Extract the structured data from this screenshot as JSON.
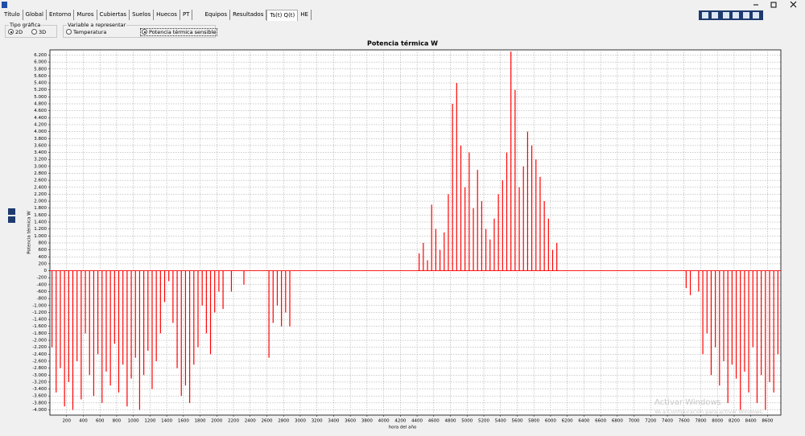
{
  "tabs": [
    "Título",
    "Global",
    "Entorno",
    "Muros",
    "Cubiertas",
    "Suelos",
    "Huecos",
    "PT",
    "Equipos",
    "Resultados",
    "Ts(t) Q(t)",
    "HE"
  ],
  "tipo_grafica": {
    "label": "Tipo gráfica",
    "options": [
      "2D",
      "3D"
    ]
  },
  "variable": {
    "label": "Variable a representar",
    "options": [
      "Temperatura",
      "Potencia térmica sensible"
    ]
  },
  "watermark": {
    "title": "Activar Windows",
    "text": "Ve a Configuración para activar Windows."
  },
  "chart_data": {
    "type": "bar",
    "title": "Potencia térmica W",
    "x_label": "hora del año",
    "y_label": "Potencia térmica W",
    "color": "#ff0000",
    "grid": true,
    "xlim": [
      0,
      8760
    ],
    "ylim": [
      -4150,
      6350
    ],
    "xticks": [
      200,
      400,
      600,
      800,
      1000,
      1200,
      1400,
      1600,
      1800,
      2000,
      2200,
      2400,
      2600,
      2800,
      3000,
      3200,
      3400,
      3600,
      3800,
      4000,
      4200,
      4400,
      4600,
      4800,
      5000,
      5200,
      5400,
      5600,
      5800,
      6000,
      6200,
      6400,
      6600,
      6800,
      7000,
      7200,
      7400,
      7600,
      7800,
      8000,
      8200,
      8400,
      8600
    ],
    "yticks": [
      {
        "value": 6200,
        "label": "6.200"
      },
      {
        "value": 6000,
        "label": "6.000"
      },
      {
        "value": 5800,
        "label": "5.800"
      },
      {
        "value": 5600,
        "label": "5.600"
      },
      {
        "value": 5400,
        "label": "5.400"
      },
      {
        "value": 5200,
        "label": "5.200"
      },
      {
        "value": 5000,
        "label": "5.000"
      },
      {
        "value": 4800,
        "label": "4.800"
      },
      {
        "value": 4600,
        "label": "4.600"
      },
      {
        "value": 4400,
        "label": "4.400"
      },
      {
        "value": 4200,
        "label": "4.200"
      },
      {
        "value": 4000,
        "label": "4.000"
      },
      {
        "value": 3800,
        "label": "3.800"
      },
      {
        "value": 3600,
        "label": "3.600"
      },
      {
        "value": 3400,
        "label": "3.400"
      },
      {
        "value": 3200,
        "label": "3.200"
      },
      {
        "value": 3000,
        "label": "3.000"
      },
      {
        "value": 2800,
        "label": "2.800"
      },
      {
        "value": 2600,
        "label": "2.600"
      },
      {
        "value": 2400,
        "label": "2.400"
      },
      {
        "value": 2200,
        "label": "2.200"
      },
      {
        "value": 2000,
        "label": "2.000"
      },
      {
        "value": 1800,
        "label": "1.800"
      },
      {
        "value": 1600,
        "label": "1.600"
      },
      {
        "value": 1400,
        "label": "1.400"
      },
      {
        "value": 1200,
        "label": "1.200"
      },
      {
        "value": 1000,
        "label": "1.000"
      },
      800,
      600,
      400,
      200,
      0,
      -200,
      -400,
      -600,
      -800,
      {
        "value": -1000,
        "label": "-1.000"
      },
      {
        "value": -1200,
        "label": "-1.200"
      },
      {
        "value": -1400,
        "label": "-1.400"
      },
      {
        "value": -1600,
        "label": "-1.600"
      },
      {
        "value": -1800,
        "label": "-1.800"
      },
      {
        "value": -2000,
        "label": "-2.000"
      },
      {
        "value": -2200,
        "label": "-2.200"
      },
      {
        "value": -2400,
        "label": "-2.400"
      },
      {
        "value": -2600,
        "label": "-2.600"
      },
      {
        "value": -2800,
        "label": "-2.800"
      },
      {
        "value": -3000,
        "label": "-3.000"
      },
      {
        "value": -3200,
        "label": "-3.200"
      },
      {
        "value": -3400,
        "label": "-3.400"
      },
      {
        "value": -3600,
        "label": "-3.600"
      },
      {
        "value": -3800,
        "label": "-3.800"
      },
      {
        "value": -4000,
        "label": "-4.000"
      }
    ],
    "x": [
      25,
      75,
      125,
      175,
      225,
      275,
      325,
      375,
      425,
      475,
      525,
      575,
      625,
      675,
      725,
      775,
      825,
      875,
      925,
      975,
      1025,
      1075,
      1125,
      1175,
      1225,
      1275,
      1325,
      1375,
      1425,
      1475,
      1525,
      1575,
      1625,
      1675,
      1725,
      1775,
      1825,
      1875,
      1925,
      1975,
      2025,
      2075,
      2125,
      2175,
      2225,
      2275,
      2325,
      2375,
      2425,
      2475,
      2525,
      2575,
      2625,
      2675,
      2725,
      2775,
      2825,
      2875,
      2925,
      2975,
      3025,
      3075,
      3125,
      3175,
      3225,
      3275,
      3325,
      3375,
      3425,
      3475,
      3525,
      3575,
      3625,
      3675,
      3725,
      3775,
      3825,
      3875,
      3925,
      3975,
      4025,
      4075,
      4125,
      4175,
      4225,
      4275,
      4325,
      4375,
      4425,
      4475,
      4525,
      4575,
      4625,
      4675,
      4725,
      4775,
      4825,
      4875,
      4925,
      4975,
      5025,
      5075,
      5125,
      5175,
      5225,
      5275,
      5325,
      5375,
      5425,
      5475,
      5525,
      5575,
      5625,
      5675,
      5725,
      5775,
      5825,
      5875,
      5925,
      5975,
      6025,
      6075,
      6125,
      6175,
      6225,
      6275,
      6325,
      6375,
      6425,
      6475,
      6525,
      6575,
      6625,
      6675,
      6725,
      6775,
      6825,
      6875,
      6925,
      6975,
      7025,
      7075,
      7125,
      7175,
      7225,
      7275,
      7325,
      7375,
      7425,
      7475,
      7525,
      7575,
      7625,
      7675,
      7725,
      7775,
      7825,
      7875,
      7925,
      7975,
      8025,
      8075,
      8125,
      8175,
      8225,
      8275,
      8325,
      8375,
      8425,
      8475,
      8525,
      8575,
      8625,
      8675,
      8725
    ],
    "values": [
      -2200,
      -3500,
      -2800,
      -3900,
      -3200,
      -4000,
      -2600,
      -3700,
      -1800,
      -3000,
      -3600,
      -2400,
      -3800,
      -2900,
      -3300,
      -2100,
      -3500,
      -2700,
      -3900,
      -3100,
      -2500,
      -4000,
      -3000,
      -2300,
      -3400,
      -2600,
      -1800,
      -900,
      -300,
      -1500,
      -2800,
      -3600,
      -3300,
      -3800,
      -2700,
      -2200,
      -1000,
      -1800,
      -2400,
      -1200,
      -600,
      -1100,
      0,
      -600,
      0,
      0,
      -400,
      0,
      0,
      0,
      0,
      0,
      -2500,
      -1500,
      -1000,
      -1600,
      -1200,
      -1600,
      0,
      0,
      0,
      0,
      0,
      0,
      0,
      0,
      0,
      0,
      0,
      0,
      0,
      0,
      0,
      0,
      0,
      0,
      0,
      0,
      0,
      0,
      0,
      0,
      0,
      0,
      0,
      0,
      0,
      0,
      500,
      800,
      300,
      1900,
      1200,
      600,
      1100,
      2200,
      4800,
      5400,
      3600,
      2400,
      3400,
      1800,
      2900,
      2000,
      1200,
      900,
      1500,
      2200,
      2600,
      3400,
      6300,
      5200,
      2400,
      3000,
      4000,
      3600,
      3200,
      2700,
      2000,
      1500,
      600,
      800,
      0,
      0,
      0,
      0,
      0,
      0,
      0,
      0,
      0,
      0,
      0,
      0,
      0,
      0,
      0,
      0,
      0,
      0,
      0,
      0,
      0,
      0,
      0,
      0,
      0,
      0,
      0,
      0,
      0,
      0,
      -500,
      -700,
      0,
      -600,
      -2400,
      -1800,
      -3000,
      -2200,
      -3300,
      -2600,
      -3800,
      -2700,
      -3100,
      -4000,
      -2900,
      -3500,
      -2200,
      -3800,
      -3000,
      -4000,
      -3200,
      -3500,
      -2400
    ]
  }
}
